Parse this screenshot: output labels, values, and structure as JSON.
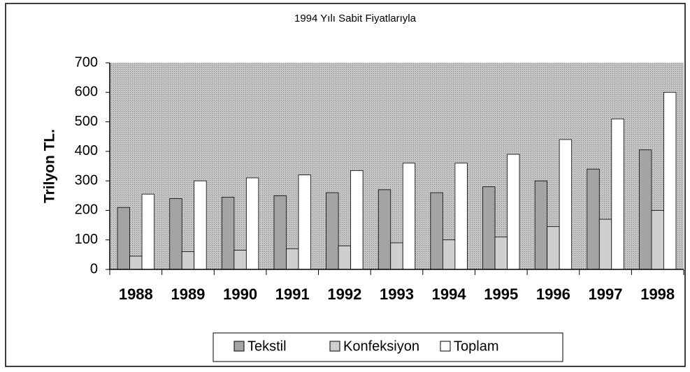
{
  "chart_data": {
    "type": "bar",
    "title": "1994 Yılı Sabit Fiyatlarıyla",
    "y_label": "Trilyon TL.",
    "categories": [
      "1988",
      "1989",
      "1990",
      "1991",
      "1992",
      "1993",
      "1994",
      "1995",
      "1996",
      "1997",
      "1998"
    ],
    "series": [
      {
        "name": "Tekstil",
        "color": "#a4a4a4",
        "values": [
          210,
          240,
          245,
          250,
          260,
          270,
          260,
          280,
          300,
          340,
          405
        ]
      },
      {
        "name": "Konfeksiyon",
        "color": "#cfcfcf",
        "values": [
          45,
          60,
          65,
          70,
          80,
          90,
          100,
          110,
          145,
          170,
          200
        ]
      },
      {
        "name": "Toplam",
        "color": "#ffffff",
        "values": [
          255,
          300,
          310,
          320,
          335,
          360,
          360,
          390,
          440,
          510,
          600
        ]
      }
    ],
    "ylim": [
      0,
      700
    ],
    "yticks": [
      0,
      100,
      200,
      300,
      400,
      500,
      600,
      700
    ],
    "grid": false,
    "legend": "bottom"
  }
}
